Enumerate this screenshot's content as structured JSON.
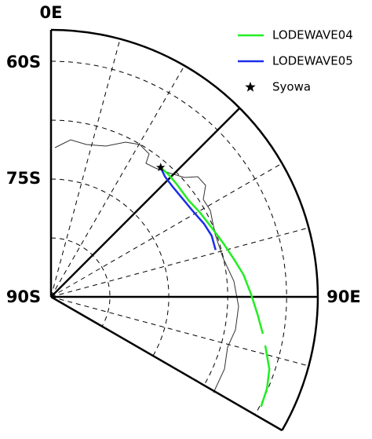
{
  "map": {
    "axis_labels": {
      "top": "0E",
      "lat60": "60S",
      "lat75": "75S",
      "pole": "90S",
      "right": "90E"
    },
    "tracks": [
      {
        "name": "LODEWAVE04",
        "color": "#22ee22",
        "lon": [
          40.3,
          43.9,
          48.2,
          54.9,
          60.4,
          66.8,
          72.8,
          78.4,
          83.5,
          89.3,
          94.8,
          99.9,
          null,
          102.8,
          108.3,
          113.0,
          117.6
        ],
        "lat": [
          -68.4,
          -68.4,
          -68.5,
          -68.6,
          -68.2,
          -67.7,
          -67.0,
          -66.2,
          -65.3,
          -64.5,
          -63.6,
          -62.6,
          null,
          -62.0,
          -60.7,
          -60.1,
          -59.8
        ]
      },
      {
        "name": "LODEWAVE05",
        "color": "#1a2ee8",
        "lon": [
          40.3,
          43.5,
          47.9,
          52.2,
          58.6,
          64.5,
          69.2,
          74.1
        ],
        "lat": [
          -68.4,
          -68.9,
          -69.1,
          -69.1,
          -68.9,
          -68.4,
          -68.1,
          -68.2
        ]
      }
    ],
    "station": {
      "name": "Syowa",
      "lon": 40.3,
      "lat": -68.4
    }
  }
}
